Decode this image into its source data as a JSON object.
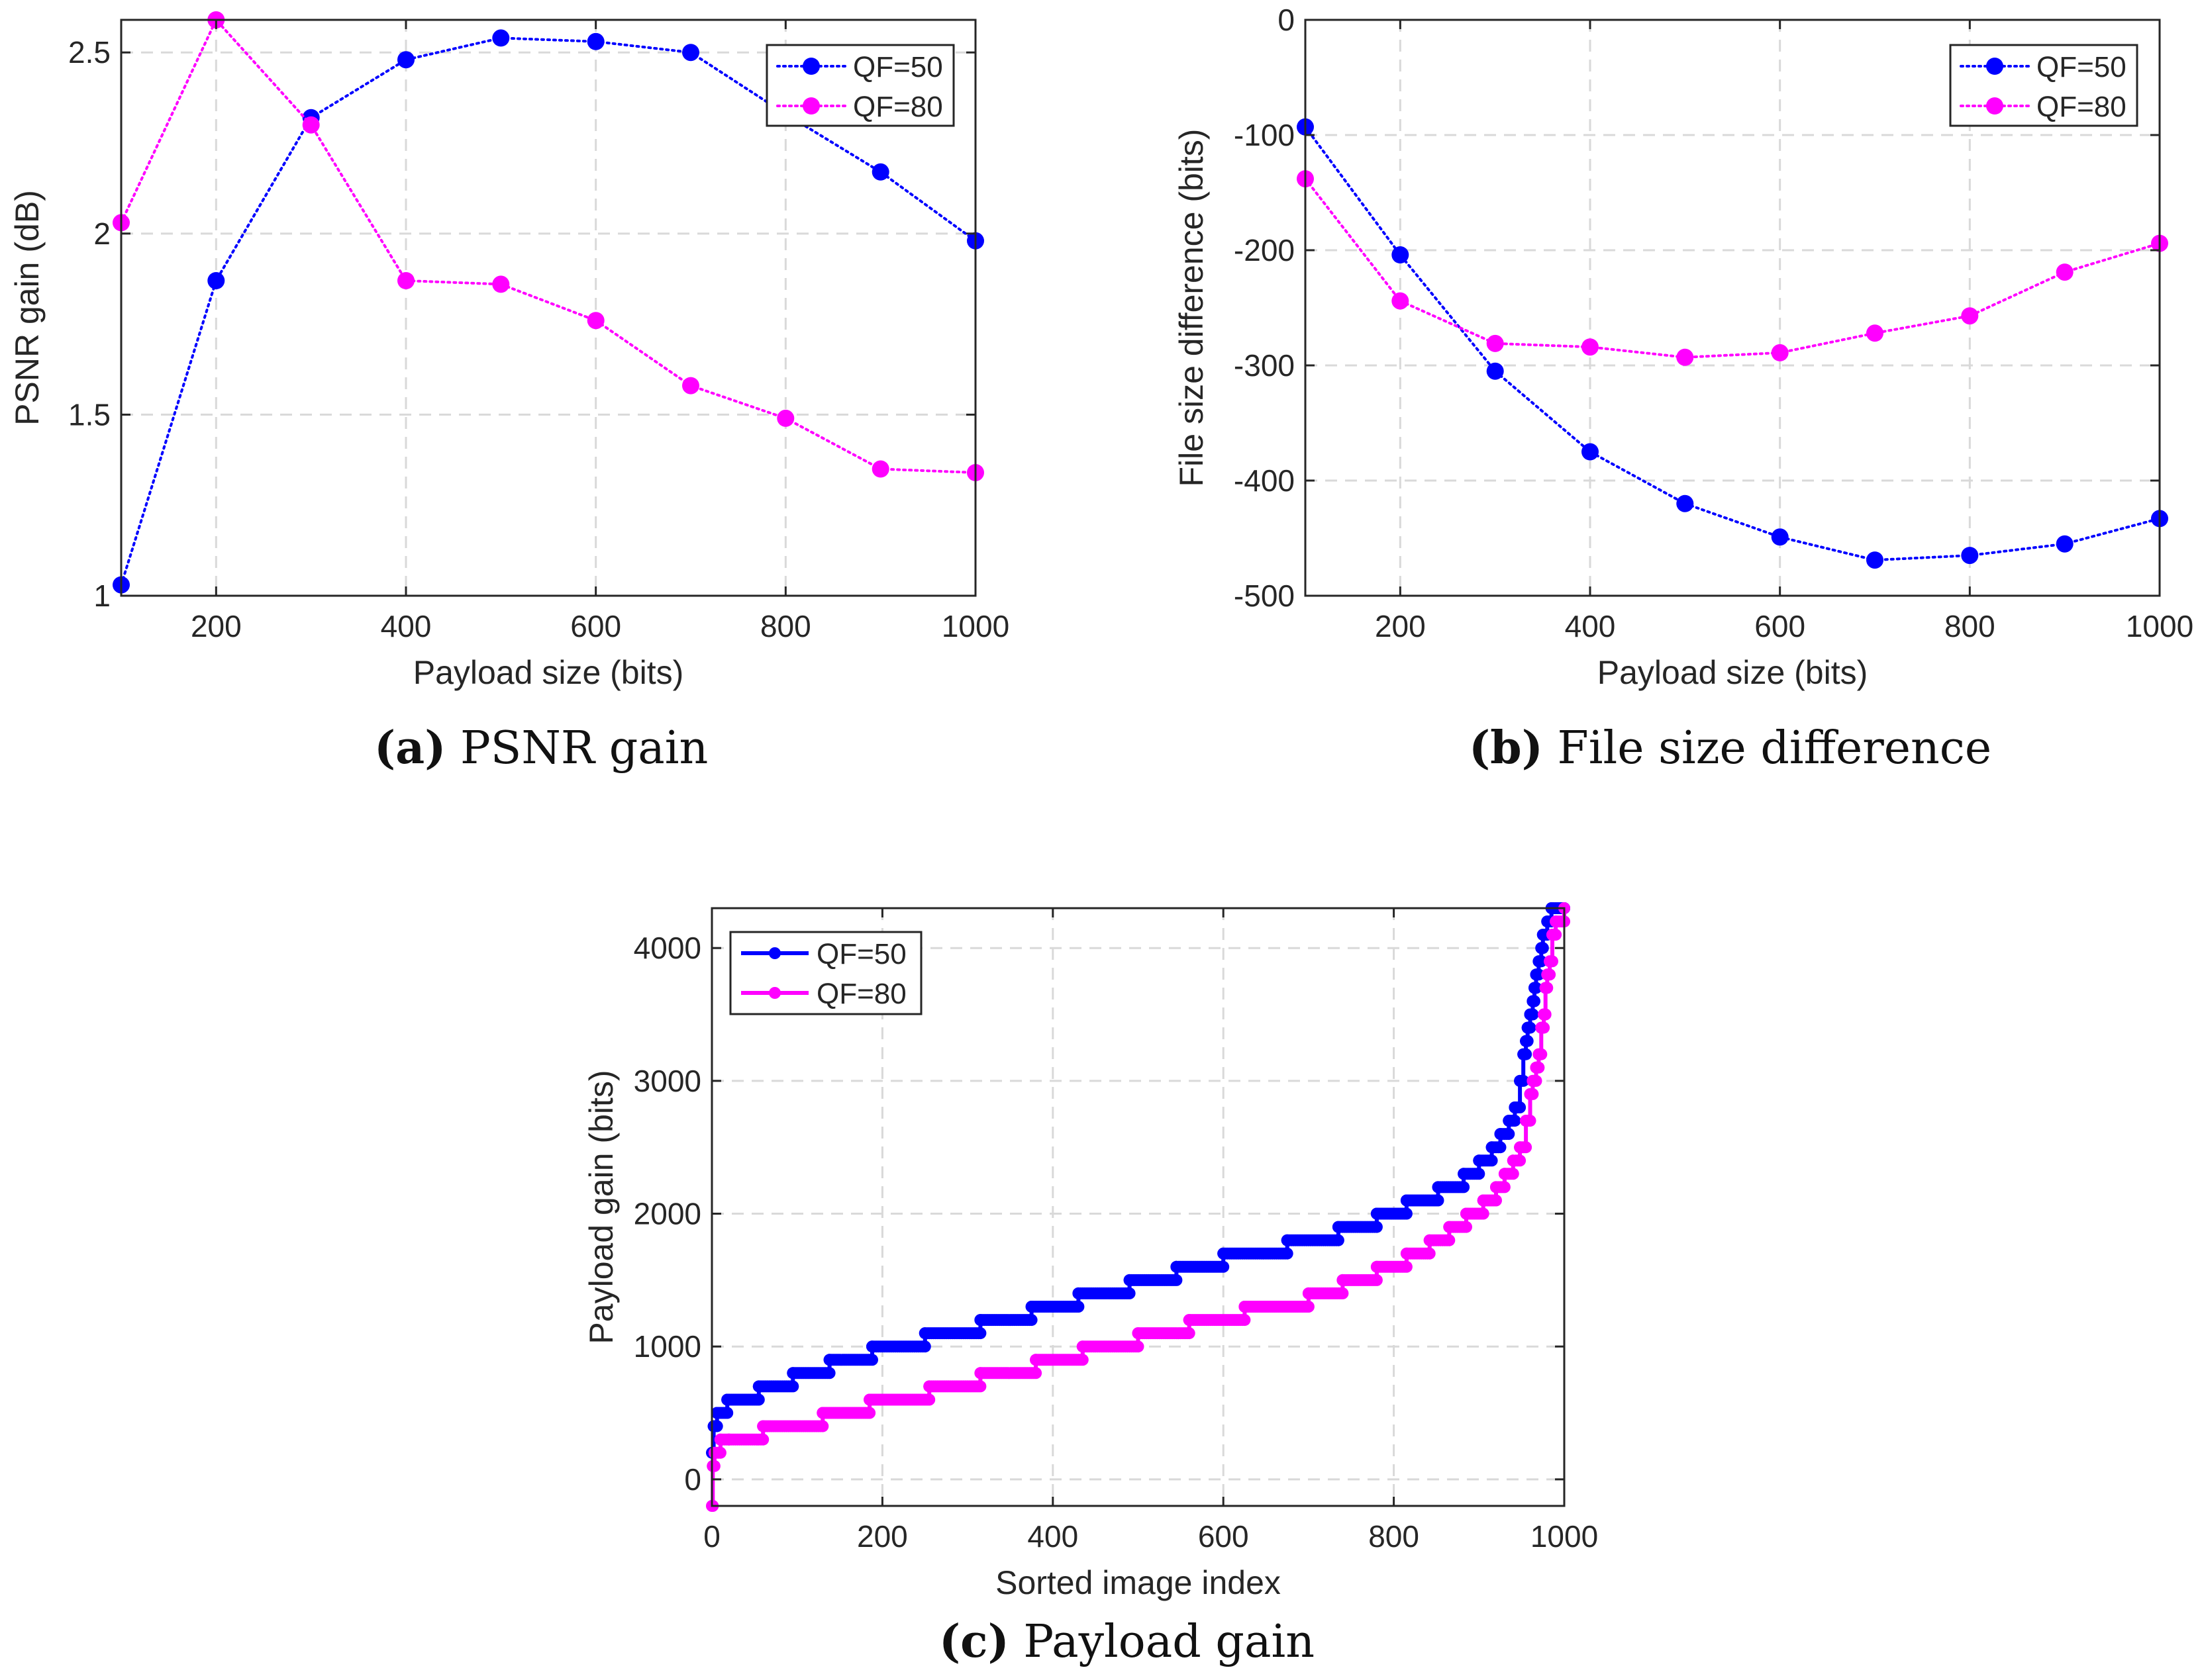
{
  "colors": {
    "qf50": "#0000ff",
    "qf80": "#ff00ff",
    "axis": "#262626",
    "grid": "#d9d9d9"
  },
  "chart_data": [
    {
      "id": "a",
      "type": "line",
      "caption_label": "(a)",
      "caption_text": "PSNR gain",
      "xlabel": "Payload size (bits)",
      "ylabel": "PSNR gain (dB)",
      "xlim": [
        100,
        1000
      ],
      "ylim": [
        1,
        2.59
      ],
      "xticks": [
        200,
        400,
        600,
        800,
        1000
      ],
      "yticks": [
        1,
        1.5,
        2,
        2.5
      ],
      "ytick_labels": [
        "1",
        "1.5",
        "2",
        "2.5"
      ],
      "grid": true,
      "legend_position": "top-right",
      "series": [
        {
          "name": "QF=50",
          "style": "dotted-marker",
          "x": [
            100,
            200,
            300,
            400,
            500,
            600,
            700,
            800,
            900,
            1000
          ],
          "values": [
            1.03,
            1.87,
            2.32,
            2.48,
            2.54,
            2.53,
            2.5,
            2.33,
            2.17,
            1.98
          ]
        },
        {
          "name": "QF=80",
          "style": "dotted-marker",
          "x": [
            100,
            200,
            300,
            400,
            500,
            600,
            700,
            800,
            900,
            1000
          ],
          "values": [
            2.03,
            2.59,
            2.3,
            1.87,
            1.86,
            1.76,
            1.58,
            1.49,
            1.35,
            1.34
          ]
        }
      ]
    },
    {
      "id": "b",
      "type": "line",
      "caption_label": "(b)",
      "caption_text": "File size difference",
      "xlabel": "Payload size (bits)",
      "ylabel": "File size difference (bits)",
      "xlim": [
        100,
        1000
      ],
      "ylim": [
        -500,
        0
      ],
      "xticks": [
        200,
        400,
        600,
        800,
        1000
      ],
      "yticks": [
        -500,
        -400,
        -300,
        -200,
        -100,
        0
      ],
      "ytick_labels": [
        "-500",
        "-400",
        "-300",
        "-200",
        "-100",
        "0"
      ],
      "grid": true,
      "legend_position": "top-right",
      "series": [
        {
          "name": "QF=50",
          "style": "dotted-marker",
          "x": [
            100,
            200,
            300,
            400,
            500,
            600,
            700,
            800,
            900,
            1000
          ],
          "values": [
            -93,
            -204,
            -305,
            -375,
            -420,
            -449,
            -469,
            -465,
            -455,
            -433
          ]
        },
        {
          "name": "QF=80",
          "style": "dotted-marker",
          "x": [
            100,
            200,
            300,
            400,
            500,
            600,
            700,
            800,
            900,
            1000
          ],
          "values": [
            -138,
            -244,
            -281,
            -284,
            -293,
            -289,
            -272,
            -257,
            -219,
            -194
          ]
        }
      ]
    },
    {
      "id": "c",
      "type": "line",
      "caption_label": "(c)",
      "caption_text": "Payload gain",
      "xlabel": "Sorted image index",
      "ylabel": "Payload gain (bits)",
      "xlim": [
        0,
        1000
      ],
      "ylim": [
        -200,
        4300
      ],
      "xticks": [
        0,
        200,
        400,
        600,
        800,
        1000
      ],
      "yticks": [
        0,
        1000,
        2000,
        3000,
        4000
      ],
      "ytick_labels": [
        "0",
        "1000",
        "2000",
        "3000",
        "4000"
      ],
      "grid": true,
      "legend_position": "top-left",
      "series": [
        {
          "name": "QF=50",
          "style": "solid-marker",
          "step_x": [
            0,
            2,
            6,
            18,
            55,
            95,
            138,
            188,
            250,
            315,
            375,
            430,
            490,
            545,
            600,
            675,
            735,
            780,
            815,
            852,
            882,
            900,
            915,
            925,
            935,
            942,
            948,
            952,
            955,
            957,
            960,
            963,
            965,
            967,
            970,
            973,
            975,
            980,
            985,
            1000
          ],
          "step_y": [
            200,
            400,
            500,
            600,
            700,
            800,
            900,
            1000,
            1100,
            1200,
            1300,
            1400,
            1500,
            1600,
            1700,
            1800,
            1900,
            2000,
            2100,
            2200,
            2300,
            2400,
            2500,
            2600,
            2700,
            2800,
            3000,
            3200,
            3300,
            3400,
            3500,
            3600,
            3700,
            3800,
            3900,
            4000,
            4100,
            4200,
            4300,
            4300
          ]
        },
        {
          "name": "QF=80",
          "style": "solid-marker",
          "step_x": [
            0,
            1,
            3,
            10,
            20,
            60,
            130,
            185,
            255,
            315,
            380,
            435,
            500,
            560,
            625,
            700,
            740,
            780,
            815,
            842,
            865,
            885,
            905,
            920,
            930,
            940,
            948,
            955,
            960,
            963,
            967,
            970,
            973,
            976,
            978,
            980,
            983,
            986,
            990,
            1000
          ],
          "step_y": [
            -200,
            100,
            200,
            300,
            300,
            400,
            500,
            600,
            700,
            800,
            900,
            1000,
            1100,
            1200,
            1300,
            1400,
            1500,
            1600,
            1700,
            1800,
            1900,
            2000,
            2100,
            2200,
            2300,
            2400,
            2500,
            2700,
            2900,
            3000,
            3100,
            3200,
            3400,
            3500,
            3700,
            3800,
            3900,
            4100,
            4200,
            4300
          ]
        }
      ]
    }
  ]
}
